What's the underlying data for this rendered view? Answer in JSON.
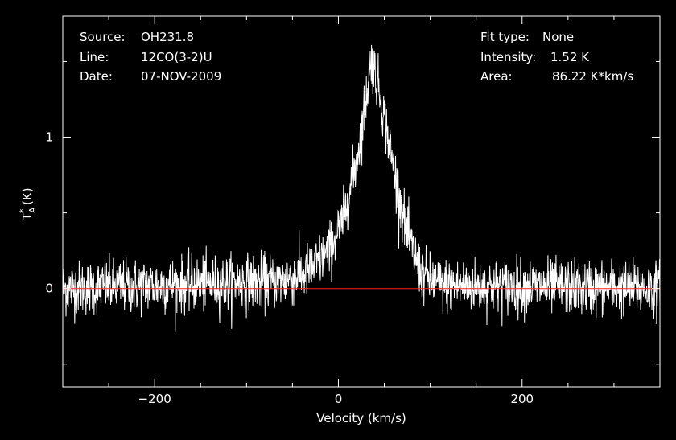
{
  "header": {
    "source_label": "Source:",
    "source_value": "OH231.8",
    "line_label": "Line:",
    "line_value": "12CO(3-2)U",
    "date_label": "Date:",
    "date_value": "07-NOV-2009",
    "fit_type_label": "Fit type:",
    "fit_type_value": "None",
    "intensity_label": "Intensity:",
    "intensity_value": "1.52 K",
    "area_label": "Area:",
    "area_value": "86.22 K*km/s"
  },
  "chart_data": {
    "type": "line",
    "title": "",
    "xlabel": "Velocity (km/s)",
    "ylabel_main": "T",
    "ylabel_super": "*",
    "ylabel_sub": "A",
    "ylabel_unit": "(K)",
    "xlim": [
      -300,
      350
    ],
    "ylim": [
      -0.65,
      1.8
    ],
    "x_ticks": [
      -200,
      0,
      200
    ],
    "x_tick_labels": [
      "−200",
      "0",
      "200"
    ],
    "y_ticks": [
      0,
      1
    ],
    "y_tick_labels": [
      "0",
      "1"
    ],
    "baseline": 0,
    "baseline_color": "#ff2020",
    "series_color": "#ffffff",
    "grid": false,
    "series": [
      {
        "profile_points": [
          [
            -300,
            0.0
          ],
          [
            -60,
            0.05
          ],
          [
            -30,
            0.12
          ],
          [
            -10,
            0.25
          ],
          [
            5,
            0.45
          ],
          [
            20,
            0.85
          ],
          [
            30,
            1.25
          ],
          [
            36,
            1.52
          ],
          [
            45,
            1.3
          ],
          [
            60,
            0.8
          ],
          [
            75,
            0.35
          ],
          [
            90,
            0.1
          ],
          [
            110,
            0.02
          ],
          [
            350,
            0.0
          ]
        ],
        "noise_rms": 0.09
      }
    ]
  }
}
